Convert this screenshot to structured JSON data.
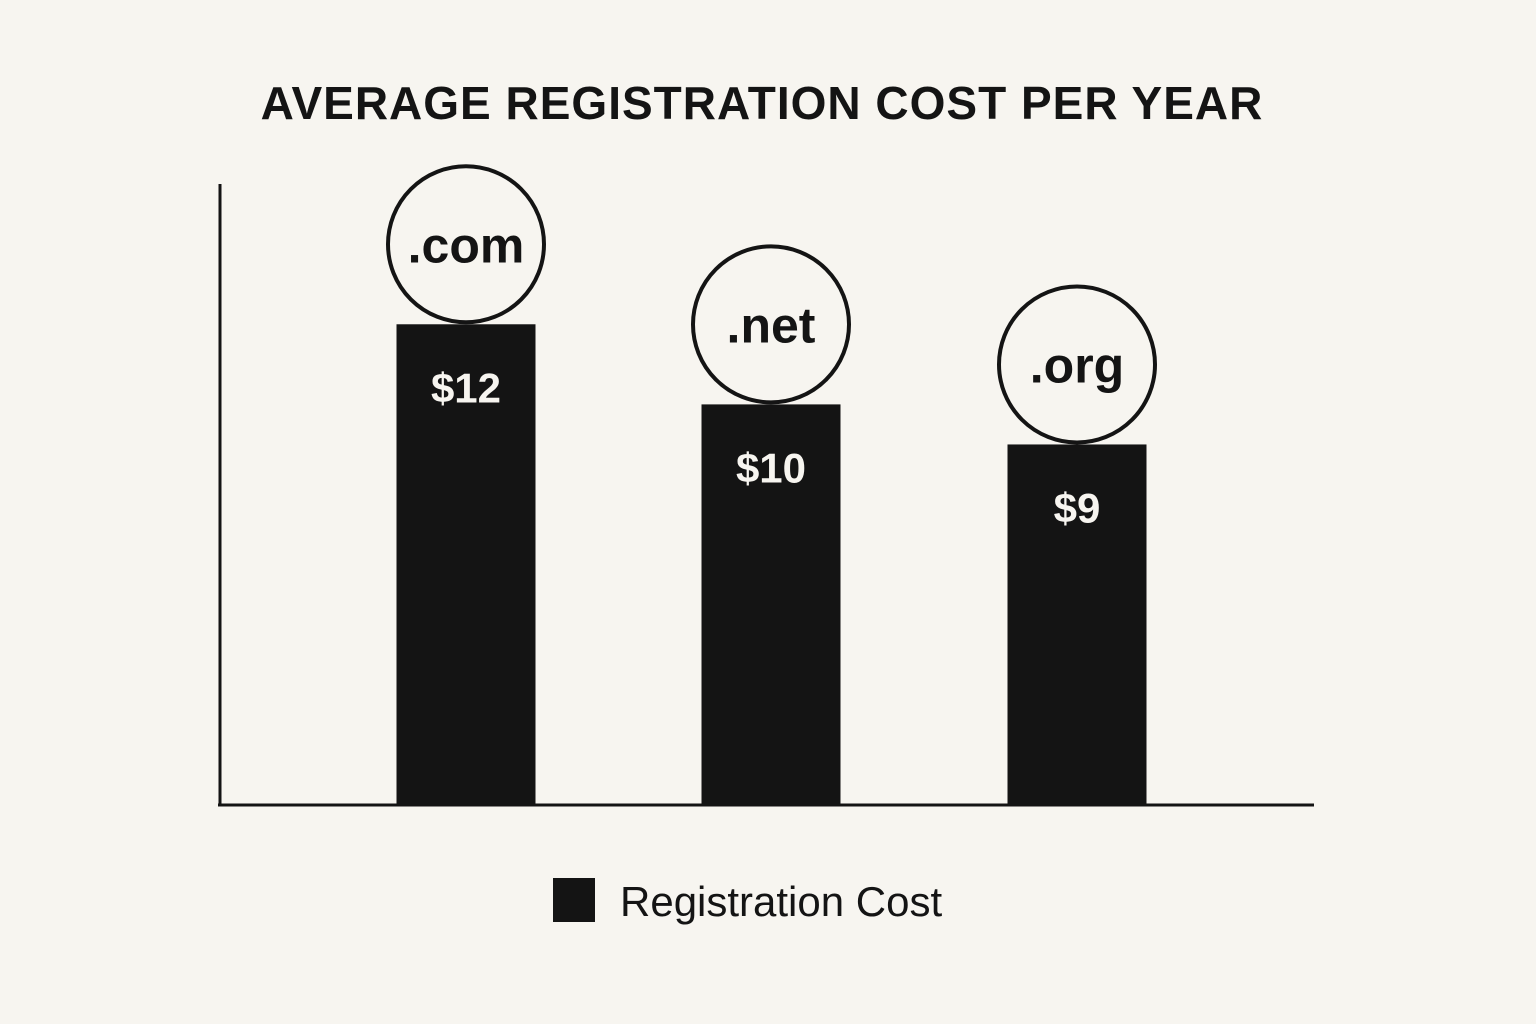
{
  "chart_data": {
    "type": "bar",
    "title": "AVERAGE REGISTRATION COST PER YEAR",
    "categories": [
      ".com",
      ".net",
      ".org"
    ],
    "values": [
      12,
      10,
      9
    ],
    "value_labels": [
      "$12",
      "$10",
      "$9"
    ],
    "series": [
      {
        "name": "Registration Cost",
        "values": [
          12,
          10,
          9
        ]
      }
    ],
    "xlabel": "",
    "ylabel": "",
    "ylim": [
      0,
      16.5
    ],
    "grid": false,
    "legend_position": "bottom-center",
    "colors": {
      "bar": "#141414",
      "axis": "#141414",
      "background": "#f7f5f0",
      "label_on_bar": "#f7f5f0"
    }
  },
  "legend": {
    "label": "Registration Cost"
  }
}
